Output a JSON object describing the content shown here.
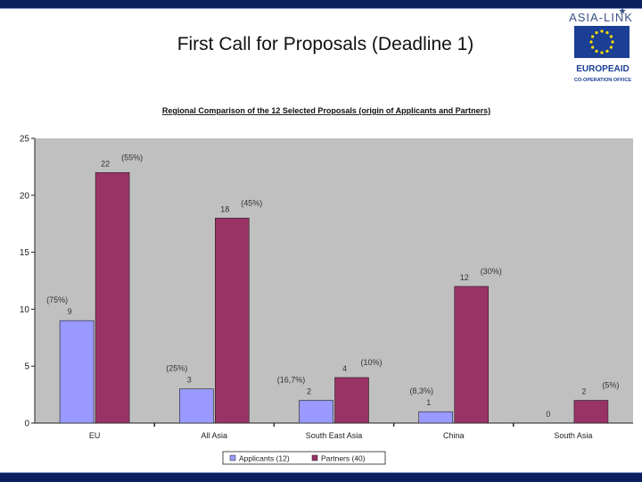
{
  "slide": {
    "title": "First Call for Proposals (Deadline 1)"
  },
  "logos": {
    "asia_link": "ASIA-LINK",
    "europeaid": "EUROPEAID",
    "europeaid_sub": "CO-OPERATION OFFICE",
    "europeaid_brand_color": "#1b3f94"
  },
  "colors": {
    "frame_bar": "#0b1f5c",
    "plot_background": "#c0c0c0",
    "applicants": "#9999ff",
    "partners": "#993366"
  },
  "chart_data": {
    "type": "bar",
    "title": "Regional Comparison of the 12 Selected Proposals (origin of Applicants and Partners)",
    "categories": [
      "EU",
      "All Asia",
      "South East Asia",
      "China",
      "South Asia"
    ],
    "series": [
      {
        "name": "Applicants (12)",
        "values": [
          9,
          3,
          2,
          1,
          0
        ],
        "pct_labels": [
          "(75%)",
          "(25%)",
          "(16,7%)",
          "(8,3%)",
          ""
        ]
      },
      {
        "name": "Partners (40)",
        "values": [
          22,
          18,
          4,
          12,
          2
        ],
        "pct_labels": [
          "(55%)",
          "(45%)",
          "(10%)",
          "(30%)",
          "(5%)"
        ]
      }
    ],
    "ylim": [
      0,
      25
    ],
    "yticks": [
      0,
      5,
      10,
      15,
      20,
      25
    ],
    "grid": false,
    "legend": "bottom-center",
    "xlabel": "",
    "ylabel": ""
  }
}
